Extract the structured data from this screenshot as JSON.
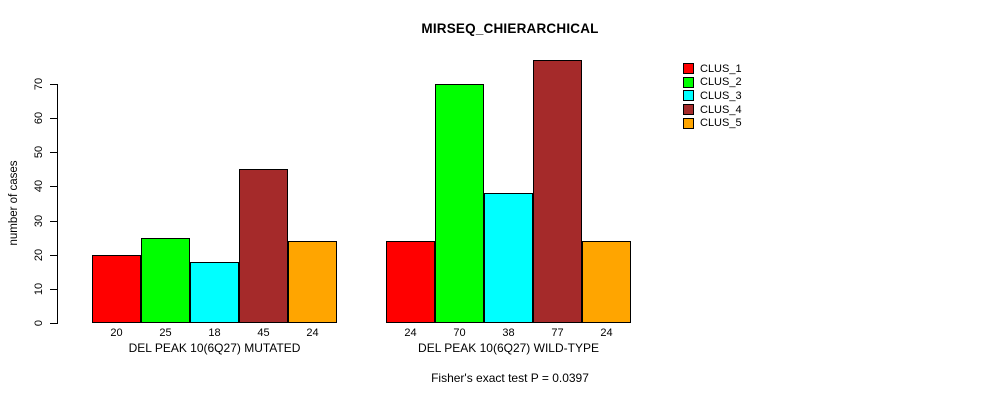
{
  "figure": {
    "background": "#ffffff",
    "text_color": "#000000"
  },
  "chart_data": {
    "type": "bar",
    "title": "MIRSEQ_CHIERARCHICAL",
    "ylabel": "number of cases",
    "xlabel": "",
    "ylim": [
      0,
      70
    ],
    "yticks": [
      0,
      10,
      20,
      30,
      40,
      50,
      60,
      70
    ],
    "grid": false,
    "bar_value_labels": true,
    "categories": [
      "CLUS_1",
      "CLUS_2",
      "CLUS_3",
      "CLUS_4",
      "CLUS_5"
    ],
    "series_colors": [
      "#ff0000",
      "#00ff00",
      "#00ffff",
      "#a52a2a",
      "#ffa500"
    ],
    "groups": [
      {
        "label": "DEL PEAK 10(6Q27) MUTATED",
        "values": [
          20,
          25,
          18,
          45,
          24
        ]
      },
      {
        "label": "DEL PEAK 10(6Q27) WILD-TYPE",
        "values": [
          24,
          70,
          38,
          77,
          24
        ]
      }
    ],
    "legend": {
      "position": "right-outside",
      "entries": [
        {
          "label": "CLUS_1",
          "color": "#ff0000"
        },
        {
          "label": "CLUS_2",
          "color": "#00ff00"
        },
        {
          "label": "CLUS_3",
          "color": "#00ffff"
        },
        {
          "label": "CLUS_4",
          "color": "#a52a2a"
        },
        {
          "label": "CLUS_5",
          "color": "#ffa500"
        }
      ]
    },
    "footer": "Fisher's exact test P = 0.0397"
  }
}
